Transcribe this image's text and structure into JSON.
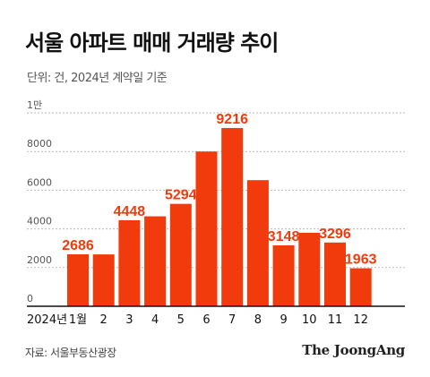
{
  "header": {
    "title": "서울 아파트 매매 거래량 추이",
    "subtitle": "단위: 건, 2024년 계약일 기준"
  },
  "footer": {
    "source": "자료: 서울부동산광장",
    "brand": "The JoongAng"
  },
  "colors": {
    "bar": "#f23b0c",
    "label": "#f23b0c",
    "grid": "#bbbbbb",
    "axis": "#111111"
  },
  "chart_data": {
    "type": "bar",
    "title": "서울 아파트 매매 거래량 추이",
    "subtitle": "단위: 건, 2024년 계약일 기준",
    "year_label": "2024년",
    "categories": [
      "1월",
      "2",
      "3",
      "4",
      "5",
      "6",
      "7",
      "8",
      "9",
      "10",
      "11",
      "12"
    ],
    "values": [
      2686,
      2680,
      4448,
      4650,
      5294,
      8000,
      9216,
      6520,
      3148,
      3800,
      3296,
      1963
    ],
    "data_labels": [
      "2686",
      "",
      "4448",
      "",
      "5294",
      "",
      "9216",
      "",
      "3148",
      "",
      "3296",
      "1963"
    ],
    "y_ticks": [
      0,
      2000,
      4000,
      6000,
      8000,
      10000
    ],
    "y_tick_labels": [
      "0",
      "2000",
      "4000",
      "6000",
      "8000",
      "1만"
    ],
    "ylim": [
      0,
      10000
    ],
    "grid": "horizontal-dashed",
    "legend": "none"
  }
}
